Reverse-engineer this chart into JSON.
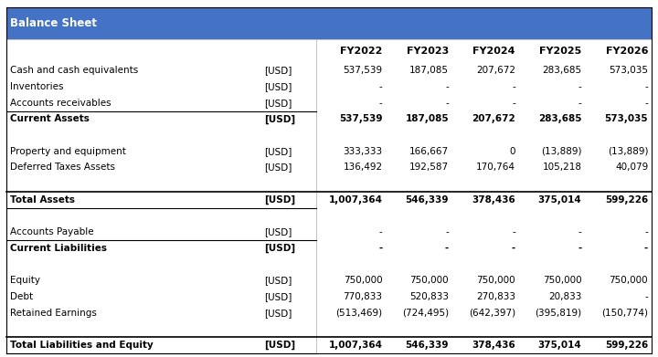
{
  "title": "Balance Sheet",
  "header_bg": "#4472C4",
  "header_text_color": "#FFFFFF",
  "years": [
    "FY2022",
    "FY2023",
    "FY2024",
    "FY2025",
    "FY2026"
  ],
  "rows": [
    {
      "label": "Cash and cash equivalents",
      "unit": "[USD]",
      "bold": false,
      "values": [
        "537,539",
        "187,085",
        "207,672",
        "283,685",
        "573,035"
      ],
      "top_border": false,
      "bottom_border": false
    },
    {
      "label": "Inventories",
      "unit": "[USD]",
      "bold": false,
      "values": [
        "-",
        "-",
        "-",
        "-",
        "-"
      ],
      "top_border": false,
      "bottom_border": false
    },
    {
      "label": "Accounts receivables",
      "unit": "[USD]",
      "bold": false,
      "values": [
        "-",
        "-",
        "-",
        "-",
        "-"
      ],
      "top_border": false,
      "bottom_border": true
    },
    {
      "label": "Current Assets",
      "unit": "[USD]",
      "bold": true,
      "values": [
        "537,539",
        "187,085",
        "207,672",
        "283,685",
        "573,035"
      ],
      "top_border": false,
      "bottom_border": false
    },
    {
      "label": "",
      "unit": "",
      "bold": false,
      "values": [
        "",
        "",
        "",
        "",
        ""
      ],
      "top_border": false,
      "bottom_border": false
    },
    {
      "label": "Property and equipment",
      "unit": "[USD]",
      "bold": false,
      "values": [
        "333,333",
        "166,667",
        "0",
        "(13,889)",
        "(13,889)"
      ],
      "top_border": false,
      "bottom_border": false
    },
    {
      "label": "Deferred Taxes Assets",
      "unit": "[USD]",
      "bold": false,
      "values": [
        "136,492",
        "192,587",
        "170,764",
        "105,218",
        "40,079"
      ],
      "top_border": false,
      "bottom_border": false
    },
    {
      "label": "",
      "unit": "",
      "bold": false,
      "values": [
        "",
        "",
        "",
        "",
        ""
      ],
      "top_border": false,
      "bottom_border": false
    },
    {
      "label": "Total Assets",
      "unit": "[USD]",
      "bold": true,
      "values": [
        "1,007,364",
        "546,339",
        "378,436",
        "375,014",
        "599,226"
      ],
      "top_border": true,
      "bottom_border": true
    },
    {
      "label": "",
      "unit": "",
      "bold": false,
      "values": [
        "",
        "",
        "",
        "",
        ""
      ],
      "top_border": false,
      "bottom_border": false
    },
    {
      "label": "Accounts Payable",
      "unit": "[USD]",
      "bold": false,
      "values": [
        "-",
        "-",
        "-",
        "-",
        "-"
      ],
      "top_border": false,
      "bottom_border": true
    },
    {
      "label": "Current Liabilities",
      "unit": "[USD]",
      "bold": true,
      "values": [
        "-",
        "-",
        "-",
        "-",
        "-"
      ],
      "top_border": false,
      "bottom_border": false
    },
    {
      "label": "",
      "unit": "",
      "bold": false,
      "values": [
        "",
        "",
        "",
        "",
        ""
      ],
      "top_border": false,
      "bottom_border": false
    },
    {
      "label": "Equity",
      "unit": "[USD]",
      "bold": false,
      "values": [
        "750,000",
        "750,000",
        "750,000",
        "750,000",
        "750,000"
      ],
      "top_border": false,
      "bottom_border": false
    },
    {
      "label": "Debt",
      "unit": "[USD]",
      "bold": false,
      "values": [
        "770,833",
        "520,833",
        "270,833",
        "20,833",
        "-"
      ],
      "top_border": false,
      "bottom_border": false
    },
    {
      "label": "Retained Earnings",
      "unit": "[USD]",
      "bold": false,
      "values": [
        "(513,469)",
        "(724,495)",
        "(642,397)",
        "(395,819)",
        "(150,774)"
      ],
      "top_border": false,
      "bottom_border": false
    },
    {
      "label": "",
      "unit": "",
      "bold": false,
      "values": [
        "",
        "",
        "",
        "",
        ""
      ],
      "top_border": false,
      "bottom_border": false
    },
    {
      "label": "Total Liabilities and Equity",
      "unit": "[USD]",
      "bold": true,
      "values": [
        "1,007,364",
        "546,339",
        "378,436",
        "375,014",
        "599,226"
      ],
      "top_border": true,
      "bottom_border": true
    }
  ],
  "font_size": 7.5,
  "header_font_size": 8.5
}
